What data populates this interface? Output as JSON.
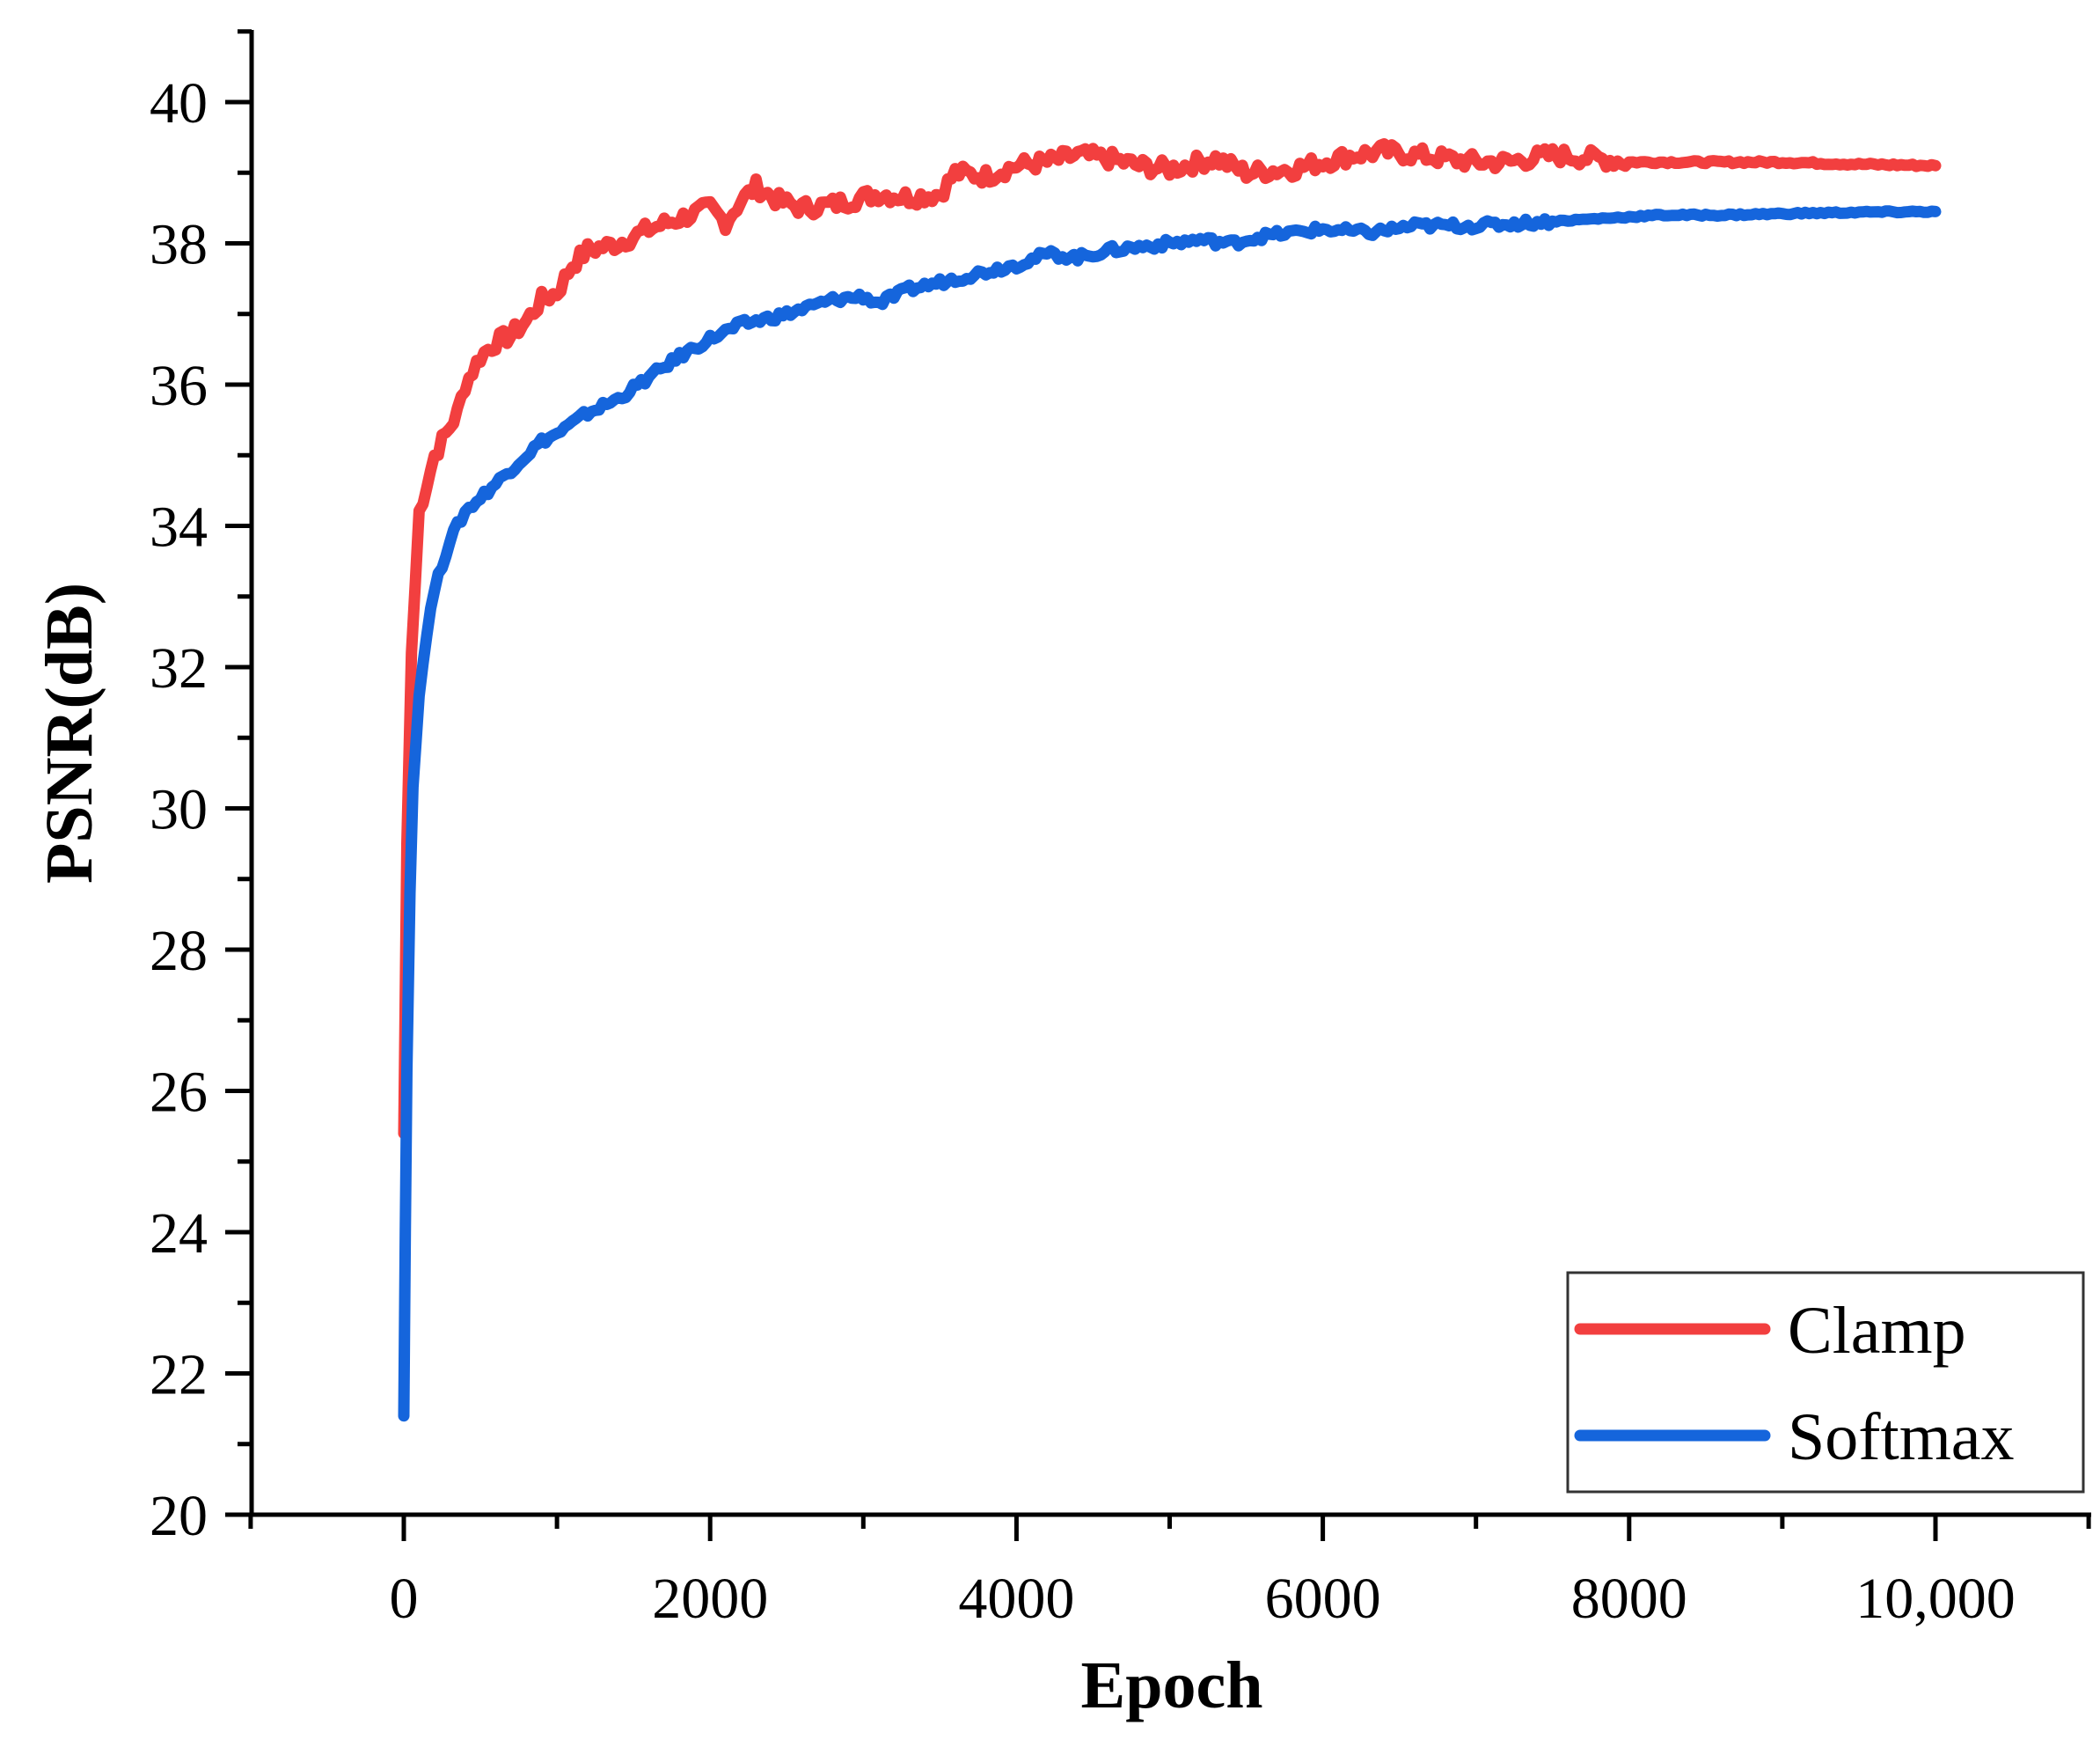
{
  "chart_data": {
    "type": "line",
    "title": "",
    "xlabel": "Epoch",
    "ylabel": "PSNR(dB)",
    "xlim": [
      -1000,
      11000
    ],
    "ylim": [
      20,
      41
    ],
    "x_ticks": [
      0,
      2000,
      4000,
      6000,
      8000,
      10000
    ],
    "x_tick_labels": [
      "0",
      "2000",
      "4000",
      "6000",
      "8000",
      "10,000"
    ],
    "y_ticks": [
      20,
      22,
      24,
      26,
      28,
      30,
      32,
      34,
      36,
      38,
      40
    ],
    "y_tick_labels": [
      "20",
      "22",
      "24",
      "26",
      "28",
      "30",
      "32",
      "34",
      "36",
      "38",
      "40"
    ],
    "grid": false,
    "legend_position": "lower right",
    "series": [
      {
        "name": "Clamp",
        "color": "#f23f3f",
        "x": [
          0,
          20,
          50,
          100,
          150,
          200,
          250,
          300,
          350,
          400,
          500,
          600,
          700,
          800,
          900,
          1000,
          1100,
          1200,
          1400,
          1600,
          1800,
          2000,
          2100,
          2200,
          2300,
          2450,
          2600,
          2800,
          3000,
          3100,
          3300,
          3500,
          3600,
          3800,
          4000,
          4200,
          4400,
          4600,
          4800,
          5000,
          5200,
          5300,
          5500,
          5800,
          6000,
          6200,
          6400,
          6600,
          6800,
          7000,
          7200,
          7500,
          7800,
          8000,
          8500,
          9000,
          9500,
          10000
        ],
        "values": [
          25.4,
          29.5,
          32.2,
          34.2,
          34.6,
          35.0,
          35.2,
          35.4,
          35.6,
          36.0,
          36.4,
          36.6,
          36.7,
          36.9,
          37.2,
          37.3,
          37.7,
          37.9,
          38.0,
          38.2,
          38.35,
          38.5,
          38.3,
          38.6,
          38.8,
          38.6,
          38.5,
          38.55,
          38.65,
          38.7,
          38.65,
          38.7,
          39.0,
          38.95,
          39.1,
          39.15,
          39.25,
          39.2,
          39.1,
          39.05,
          39.15,
          39.2,
          39.0,
          39.05,
          39.15,
          39.25,
          39.3,
          39.25,
          39.2,
          39.15,
          39.15,
          39.25,
          39.2,
          39.15,
          39.15,
          39.15,
          39.12,
          39.1
        ]
      },
      {
        "name": "Softmax",
        "color": "#1565dc",
        "x": [
          0,
          10,
          20,
          40,
          60,
          80,
          100,
          150,
          200,
          300,
          400,
          500,
          600,
          700,
          800,
          900,
          1000,
          1200,
          1400,
          1600,
          1800,
          2000,
          2200,
          2500,
          2800,
          3000,
          3100,
          3300,
          3500,
          3800,
          4000,
          4200,
          4400,
          4600,
          4800,
          5000,
          5200,
          5400,
          5600,
          5800,
          6000,
          6300,
          6600,
          7000,
          7400,
          7800,
          8200,
          8600,
          9000,
          9500,
          10000
        ],
        "values": [
          21.4,
          24.0,
          26.3,
          28.8,
          30.3,
          31.0,
          31.6,
          32.5,
          33.1,
          33.8,
          34.2,
          34.4,
          34.6,
          34.8,
          35.0,
          35.2,
          35.3,
          35.6,
          35.8,
          36.1,
          36.4,
          36.65,
          36.85,
          37.0,
          37.2,
          37.25,
          37.15,
          37.35,
          37.45,
          37.6,
          37.7,
          37.85,
          37.8,
          37.9,
          37.95,
          38.0,
          38.05,
          38.0,
          38.1,
          38.15,
          38.2,
          38.15,
          38.25,
          38.25,
          38.3,
          38.35,
          38.4,
          38.4,
          38.42,
          38.44,
          38.45
        ]
      }
    ]
  },
  "axes": {
    "xlabel": "Epoch",
    "ylabel": "PSNR(dB)"
  },
  "legend": {
    "items": [
      {
        "label": "Clamp",
        "color": "#f23f3f"
      },
      {
        "label": "Softmax",
        "color": "#1565dc"
      }
    ]
  }
}
